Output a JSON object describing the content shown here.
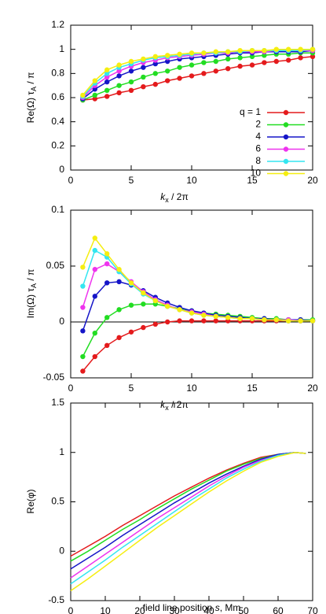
{
  "chart_data": [
    {
      "type": "line",
      "markers": true,
      "ylabel": [
        "Re(Ω) τ",
        "A",
        " / π"
      ],
      "xlabel": [
        "k",
        "x",
        " / 2π"
      ],
      "x": [
        1,
        2,
        3,
        4,
        5,
        6,
        7,
        8,
        9,
        10,
        11,
        12,
        13,
        14,
        15,
        16,
        17,
        18,
        19,
        20
      ],
      "xlim": [
        0,
        20
      ],
      "xticks": [
        0,
        5,
        10,
        15,
        20
      ],
      "ylim": [
        0,
        1.2
      ],
      "yticks": [
        0,
        0.2,
        0.4,
        0.6,
        0.8,
        1,
        1.2
      ],
      "legend": "lower right",
      "series": [
        {
          "name": "q = 1",
          "color": "#e41a1c",
          "values": [
            0.58,
            0.59,
            0.61,
            0.64,
            0.66,
            0.69,
            0.71,
            0.74,
            0.76,
            0.78,
            0.8,
            0.82,
            0.84,
            0.86,
            0.87,
            0.89,
            0.9,
            0.91,
            0.93,
            0.94
          ]
        },
        {
          "name": "2",
          "color": "#22dd22",
          "values": [
            0.58,
            0.62,
            0.66,
            0.7,
            0.73,
            0.77,
            0.8,
            0.82,
            0.85,
            0.87,
            0.89,
            0.9,
            0.92,
            0.93,
            0.94,
            0.95,
            0.96,
            0.96,
            0.97,
            0.97
          ]
        },
        {
          "name": "4",
          "color": "#1515c8",
          "values": [
            0.59,
            0.67,
            0.73,
            0.78,
            0.82,
            0.85,
            0.88,
            0.9,
            0.92,
            0.93,
            0.94,
            0.95,
            0.96,
            0.97,
            0.97,
            0.98,
            0.98,
            0.98,
            0.98,
            0.99
          ]
        },
        {
          "name": "6",
          "color": "#ee33ee",
          "values": [
            0.6,
            0.7,
            0.77,
            0.82,
            0.86,
            0.89,
            0.91,
            0.93,
            0.94,
            0.95,
            0.96,
            0.97,
            0.97,
            0.98,
            0.98,
            0.98,
            0.99,
            0.99,
            0.99,
            0.99
          ]
        },
        {
          "name": "8",
          "color": "#33e6f0",
          "values": [
            0.61,
            0.72,
            0.8,
            0.85,
            0.88,
            0.91,
            0.93,
            0.94,
            0.95,
            0.96,
            0.97,
            0.97,
            0.98,
            0.98,
            0.99,
            0.99,
            0.99,
            0.99,
            0.99,
            1.0
          ]
        },
        {
          "name": "10",
          "color": "#f5ee10",
          "values": [
            0.62,
            0.74,
            0.83,
            0.87,
            0.9,
            0.92,
            0.94,
            0.95,
            0.96,
            0.97,
            0.97,
            0.98,
            0.98,
            0.99,
            0.99,
            0.99,
            1.0,
            1.0,
            1.0,
            1.0
          ]
        }
      ]
    },
    {
      "type": "line",
      "markers": true,
      "zero_line": true,
      "ylabel": [
        "Im(Ω) τ",
        "A",
        " / π"
      ],
      "xlabel": [
        "k",
        "x",
        " / 2π"
      ],
      "x": [
        1,
        2,
        3,
        4,
        5,
        6,
        7,
        8,
        9,
        10,
        11,
        12,
        13,
        14,
        15,
        16,
        17,
        18,
        19,
        20
      ],
      "xlim": [
        0,
        20
      ],
      "xticks": [
        0,
        5,
        10,
        15,
        20
      ],
      "ylim": [
        -0.05,
        0.1
      ],
      "yticks": [
        -0.05,
        0,
        0.05,
        0.1
      ],
      "series": [
        {
          "color": "#e41a1c",
          "values": [
            -0.044,
            -0.031,
            -0.021,
            -0.014,
            -0.009,
            -0.005,
            -0.002,
            0.0,
            0.001,
            0.001,
            0.001,
            0.001,
            0.001,
            0.001,
            0.001,
            0.001,
            0.001,
            0.001,
            0.001,
            0.001
          ]
        },
        {
          "color": "#22dd22",
          "values": [
            -0.031,
            -0.01,
            0.004,
            0.011,
            0.015,
            0.016,
            0.016,
            0.014,
            0.012,
            0.01,
            0.008,
            0.007,
            0.006,
            0.005,
            0.004,
            0.003,
            0.003,
            0.002,
            0.002,
            0.002
          ]
        },
        {
          "color": "#1515c8",
          "values": [
            -0.008,
            0.023,
            0.035,
            0.036,
            0.033,
            0.028,
            0.022,
            0.017,
            0.013,
            0.01,
            0.008,
            0.006,
            0.005,
            0.004,
            0.003,
            0.003,
            0.002,
            0.002,
            0.002,
            0.001
          ]
        },
        {
          "color": "#ee33ee",
          "values": [
            0.013,
            0.047,
            0.052,
            0.045,
            0.036,
            0.027,
            0.02,
            0.015,
            0.011,
            0.009,
            0.007,
            0.005,
            0.004,
            0.003,
            0.003,
            0.002,
            0.002,
            0.002,
            0.001,
            0.001
          ]
        },
        {
          "color": "#33e6f0",
          "values": [
            0.032,
            0.064,
            0.058,
            0.045,
            0.034,
            0.025,
            0.019,
            0.014,
            0.011,
            0.008,
            0.006,
            0.005,
            0.004,
            0.003,
            0.003,
            0.002,
            0.002,
            0.001,
            0.001,
            0.001
          ]
        },
        {
          "color": "#f5ee10",
          "values": [
            0.049,
            0.075,
            0.061,
            0.047,
            0.035,
            0.026,
            0.019,
            0.014,
            0.011,
            0.008,
            0.006,
            0.005,
            0.004,
            0.003,
            0.003,
            0.002,
            0.002,
            0.001,
            0.001,
            0.001
          ]
        }
      ]
    },
    {
      "type": "line",
      "markers": false,
      "ylabel": [
        "Re(φ)"
      ],
      "xlabel": [
        "field line position ",
        "s",
        ", Mm"
      ],
      "x": [
        0,
        5,
        10,
        15,
        20,
        25,
        30,
        35,
        40,
        45,
        50,
        55,
        60,
        65,
        68
      ],
      "xlim": [
        0,
        70
      ],
      "xticks": [
        0,
        10,
        20,
        30,
        40,
        50,
        60,
        70
      ],
      "ylim": [
        -0.5,
        1.5
      ],
      "yticks": [
        -0.5,
        0,
        0.5,
        1,
        1.5
      ],
      "series": [
        {
          "color": "#e41a1c",
          "values": [
            -0.05,
            0.05,
            0.15,
            0.26,
            0.36,
            0.46,
            0.56,
            0.65,
            0.74,
            0.82,
            0.89,
            0.95,
            0.98,
            1.0,
            0.99
          ]
        },
        {
          "color": "#22dd22",
          "values": [
            -0.1,
            0.0,
            0.11,
            0.22,
            0.32,
            0.43,
            0.53,
            0.63,
            0.72,
            0.81,
            0.88,
            0.94,
            0.98,
            1.0,
            0.99
          ]
        },
        {
          "color": "#1515c8",
          "values": [
            -0.18,
            -0.07,
            0.04,
            0.16,
            0.27,
            0.38,
            0.49,
            0.59,
            0.69,
            0.78,
            0.86,
            0.93,
            0.98,
            1.0,
            0.99
          ]
        },
        {
          "color": "#ee33ee",
          "values": [
            -0.27,
            -0.15,
            -0.03,
            0.09,
            0.21,
            0.33,
            0.44,
            0.55,
            0.66,
            0.76,
            0.85,
            0.92,
            0.97,
            1.0,
            0.99
          ]
        },
        {
          "color": "#33e6f0",
          "values": [
            -0.33,
            -0.21,
            -0.09,
            0.04,
            0.16,
            0.28,
            0.4,
            0.52,
            0.63,
            0.74,
            0.83,
            0.91,
            0.97,
            1.0,
            0.99
          ]
        },
        {
          "color": "#f5ee10",
          "values": [
            -0.4,
            -0.28,
            -0.15,
            -0.02,
            0.11,
            0.24,
            0.36,
            0.48,
            0.6,
            0.71,
            0.81,
            0.9,
            0.96,
            1.0,
            0.99
          ]
        }
      ]
    }
  ]
}
